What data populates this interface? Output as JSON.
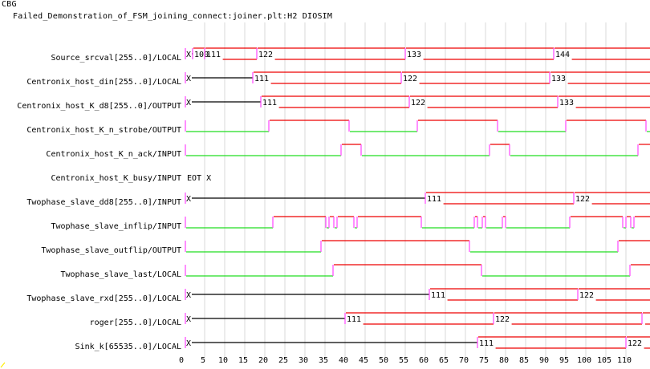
{
  "app": {
    "name": "CBG",
    "title": "Failed_Demonstration_of_FSM_joining_connect:joiner.plt:H2 DIOSIM"
  },
  "colors": {
    "high": "#ee0000",
    "low": "#22dd22",
    "edge": "#ff44ff",
    "bus": "#000000",
    "grid": "#d8d8d8",
    "busfill": "#ee0000"
  },
  "chart_data": {
    "type": "timing",
    "title": "Failed_Demonstration_of_FSM_joining_connect:joiner.plt:H2 DIOSIM",
    "xlabel": "",
    "xlim": [
      0,
      116
    ],
    "xticks": [
      0,
      5,
      10,
      15,
      20,
      25,
      30,
      35,
      40,
      45,
      50,
      55,
      60,
      65,
      70,
      75,
      80,
      85,
      90,
      95,
      100,
      105,
      110
    ],
    "xtick_labels": [
      "0",
      "5",
      "10",
      "15",
      "20",
      "25",
      "30",
      "35",
      "40",
      "45",
      "50",
      "55",
      "60",
      "65",
      "70",
      "75",
      "80",
      "85",
      "90",
      "95",
      "100",
      "105",
      "110"
    ],
    "grid": true,
    "signals": [
      {
        "name": "Source_srcval[255..0]/LOCAL",
        "kind": "bus",
        "segments": [
          {
            "t": 0,
            "v": "X",
            "undef": true
          },
          {
            "t": 2,
            "v": "100"
          },
          {
            "t": 5,
            "v": "111"
          },
          {
            "t": 18,
            "v": "122"
          },
          {
            "t": 55,
            "v": "133"
          },
          {
            "t": 92,
            "v": "144"
          }
        ]
      },
      {
        "name": "Centronix_host_din[255..0]/LOCAL",
        "kind": "bus",
        "segments": [
          {
            "t": 0,
            "v": "X",
            "undef": true
          },
          {
            "t": 17,
            "v": "111"
          },
          {
            "t": 54,
            "v": "122"
          },
          {
            "t": 91,
            "v": "133"
          }
        ]
      },
      {
        "name": "Centronix_host_K_d8[255..0]/OUTPUT",
        "kind": "bus",
        "segments": [
          {
            "t": 0,
            "v": "X",
            "undef": true
          },
          {
            "t": 19,
            "v": "111"
          },
          {
            "t": 56,
            "v": "122"
          },
          {
            "t": 93,
            "v": "133"
          }
        ]
      },
      {
        "name": "Centronix_host_K_n_strobe/OUTPUT",
        "kind": "bit",
        "initial": 0,
        "edges": [
          21,
          41,
          58,
          78,
          95,
          115
        ]
      },
      {
        "name": "Centronix_host_K_n_ack/INPUT",
        "kind": "bit",
        "initial": 0,
        "edges": [
          39,
          44,
          76,
          81,
          113
        ]
      },
      {
        "name": "Centronix_host_K_busy/INPUT",
        "kind": "text",
        "text": "EOT X"
      },
      {
        "name": "Twophase_slave_dd8[255..0]/INPUT",
        "kind": "bus",
        "segments": [
          {
            "t": 0,
            "v": "X",
            "undef": true
          },
          {
            "t": 60,
            "v": "111"
          },
          {
            "t": 97,
            "v": "122"
          }
        ]
      },
      {
        "name": "Twophase_slave_inflip/INPUT",
        "kind": "bit",
        "initial": 0,
        "edges": [
          22,
          35.2,
          36,
          37.2,
          38,
          42.2,
          43,
          59,
          72.2,
          73,
          74.2,
          75,
          79.2,
          80,
          96,
          109.2,
          110,
          111.2,
          112
        ]
      },
      {
        "name": "Twophase_slave_outflip/OUTPUT",
        "kind": "bit",
        "initial": 0,
        "edges": [
          34,
          71,
          108
        ]
      },
      {
        "name": "Twophase_slave_last/LOCAL",
        "kind": "bit",
        "initial": 0,
        "edges": [
          37,
          74,
          111
        ]
      },
      {
        "name": "Twophase_slave_rxd[255..0]/LOCAL",
        "kind": "bus",
        "segments": [
          {
            "t": 0,
            "v": "X",
            "undef": true
          },
          {
            "t": 61,
            "v": "111"
          },
          {
            "t": 98,
            "v": "122"
          }
        ]
      },
      {
        "name": "roger[255..0]/LOCAL",
        "kind": "bus",
        "segments": [
          {
            "t": 0,
            "v": "X",
            "undef": true
          },
          {
            "t": 40,
            "v": "111"
          },
          {
            "t": 77,
            "v": "122"
          },
          {
            "t": 114,
            "v": ""
          }
        ]
      },
      {
        "name": "Sink_k[65535..0]/LOCAL",
        "kind": "bus",
        "segments": [
          {
            "t": 0,
            "v": "X",
            "undef": true
          },
          {
            "t": 73,
            "v": "111"
          },
          {
            "t": 110,
            "v": "122"
          }
        ]
      }
    ]
  }
}
